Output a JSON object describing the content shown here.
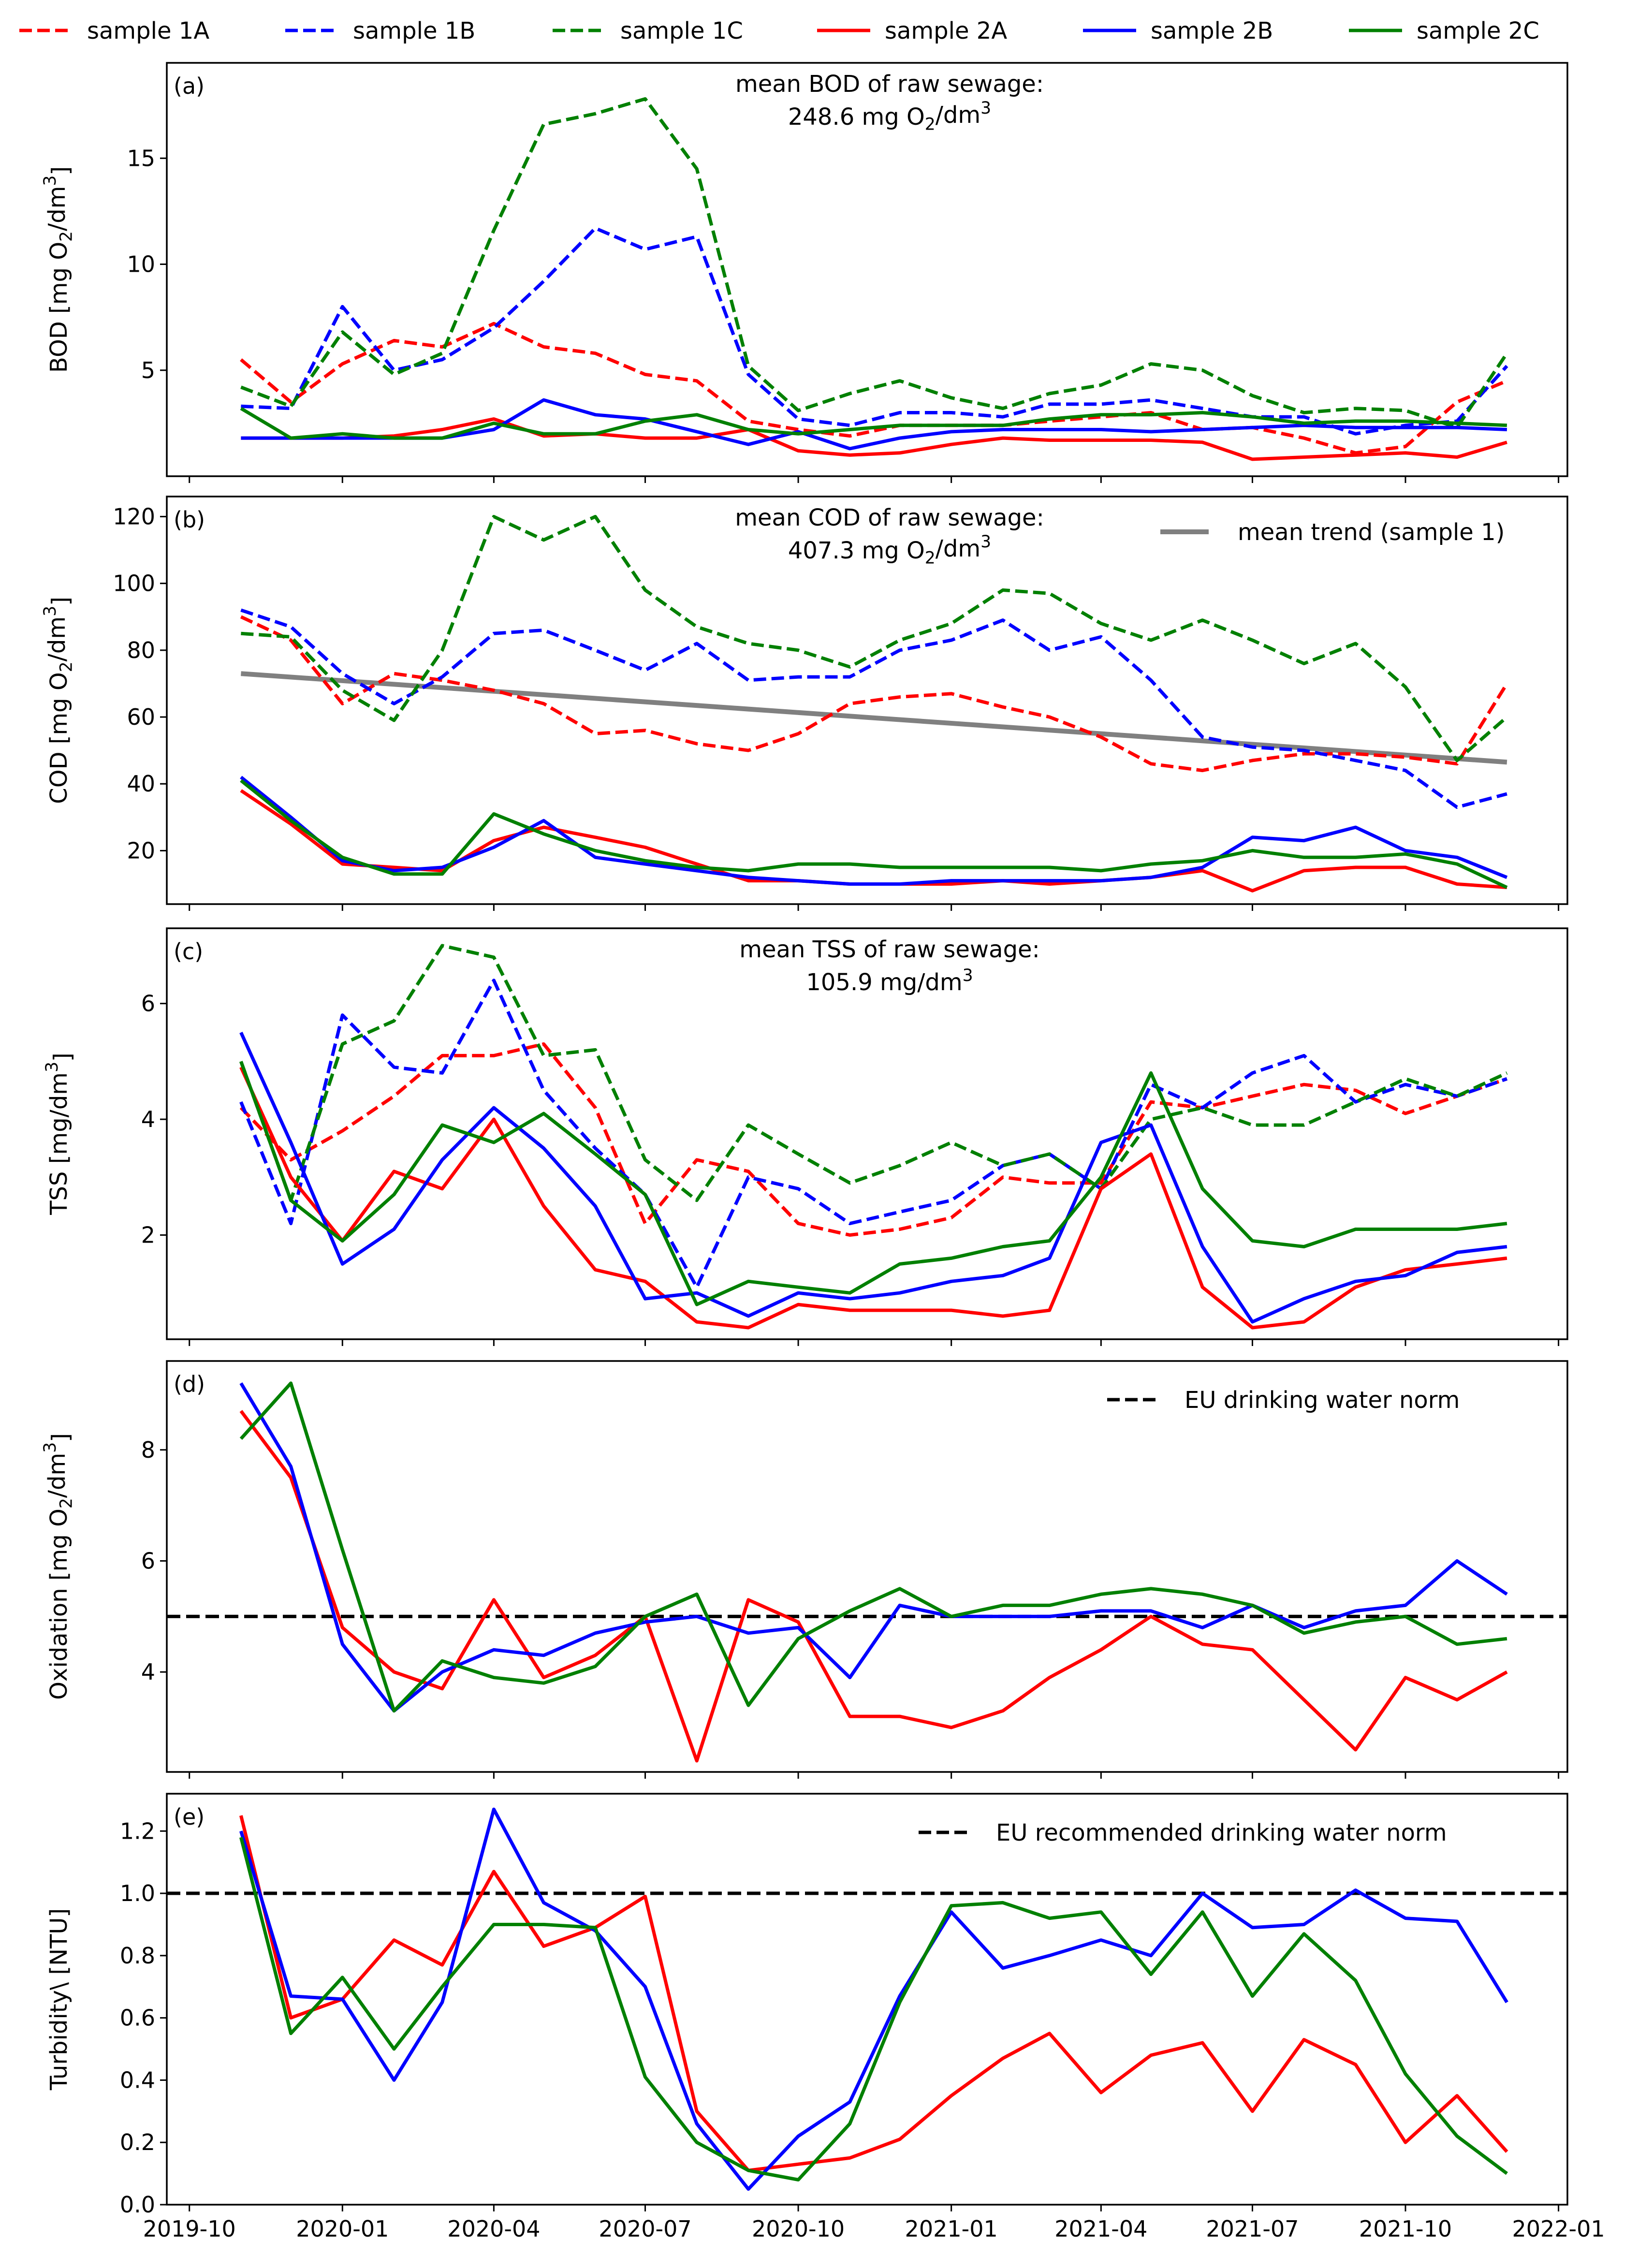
{
  "legend": [
    {
      "name": "sample 1A",
      "color": "#ff0000",
      "dash": true
    },
    {
      "name": "sample 1B",
      "color": "#0000ff",
      "dash": true
    },
    {
      "name": "sample 1C",
      "color": "#008000",
      "dash": true
    },
    {
      "name": "sample 2A",
      "color": "#ff0000",
      "dash": false
    },
    {
      "name": "sample 2B",
      "color": "#0000ff",
      "dash": false
    },
    {
      "name": "sample 2C",
      "color": "#008000",
      "dash": false
    }
  ],
  "x_axis": {
    "start": "2019-10-01",
    "end": "2022-01-01",
    "tick_labels": [
      "2019-10",
      "2020-01",
      "2020-04",
      "2020-07",
      "2020-10",
      "2021-01",
      "2021-04",
      "2021-07",
      "2021-10",
      "2022-01"
    ]
  },
  "chart_data": [
    {
      "type": "line",
      "id": "bod",
      "panel_tag": "(a)",
      "ylabel": "BOD [mg O2/dm3]",
      "ylim": [
        0.0,
        19.5
      ],
      "yticks": [
        5,
        10,
        15
      ],
      "annotation": {
        "line1": "mean BOD of raw sewage:",
        "line2": "248.6 mg O2/dm3"
      },
      "x": [
        "2019-11",
        "2019-12",
        "2020-01",
        "2020-02",
        "2020-03",
        "2020-04",
        "2020-05",
        "2020-06",
        "2020-07",
        "2020-08",
        "2020-09",
        "2020-10",
        "2020-11",
        "2020-12",
        "2021-01",
        "2021-02",
        "2021-03",
        "2021-04",
        "2021-05",
        "2021-06",
        "2021-07",
        "2021-08",
        "2021-09",
        "2021-10",
        "2021-11",
        "2021-12"
      ],
      "series": [
        {
          "name": "sample 1A",
          "values": [
            5.5,
            3.5,
            5.3,
            6.4,
            6.1,
            7.2,
            6.1,
            5.8,
            4.8,
            4.5,
            2.6,
            2.2,
            1.9,
            2.4,
            2.4,
            2.4,
            2.6,
            2.8,
            3.0,
            2.2,
            2.3,
            1.8,
            1.1,
            1.4,
            3.5,
            4.5
          ]
        },
        {
          "name": "sample 1B",
          "values": [
            3.3,
            3.2,
            8.0,
            5.0,
            5.5,
            7.0,
            9.2,
            11.7,
            10.7,
            11.3,
            4.8,
            2.7,
            2.4,
            3.0,
            3.0,
            2.8,
            3.4,
            3.4,
            3.6,
            3.2,
            2.8,
            2.8,
            2.0,
            2.4,
            2.6,
            5.2
          ]
        },
        {
          "name": "sample 1C",
          "values": [
            4.2,
            3.3,
            6.8,
            4.8,
            5.8,
            11.6,
            16.6,
            17.1,
            17.8,
            14.5,
            5.2,
            3.1,
            3.9,
            4.5,
            3.7,
            3.2,
            3.9,
            4.3,
            5.3,
            5.0,
            3.8,
            3.0,
            3.2,
            3.1,
            2.3,
            5.8
          ]
        },
        {
          "name": "sample 2A",
          "values": [
            1.8,
            1.8,
            1.8,
            1.9,
            2.2,
            2.7,
            1.9,
            2.0,
            1.8,
            1.8,
            2.2,
            1.2,
            1.0,
            1.1,
            1.5,
            1.8,
            1.7,
            1.7,
            1.7,
            1.6,
            0.8,
            0.9,
            1.0,
            1.1,
            0.9,
            1.6
          ]
        },
        {
          "name": "sample 2B",
          "values": [
            1.8,
            1.8,
            1.8,
            1.8,
            1.8,
            2.2,
            3.6,
            2.9,
            2.7,
            2.1,
            1.5,
            2.1,
            1.3,
            1.8,
            2.1,
            2.2,
            2.2,
            2.2,
            2.1,
            2.2,
            2.3,
            2.4,
            2.3,
            2.3,
            2.3,
            2.2
          ]
        },
        {
          "name": "sample 2C",
          "values": [
            3.2,
            1.8,
            2.0,
            1.8,
            1.8,
            2.5,
            2.0,
            2.0,
            2.6,
            2.9,
            2.2,
            2.0,
            2.2,
            2.4,
            2.4,
            2.4,
            2.7,
            2.9,
            2.9,
            3.0,
            2.8,
            2.5,
            2.6,
            2.6,
            2.5,
            2.4
          ]
        }
      ]
    },
    {
      "type": "line",
      "id": "cod",
      "panel_tag": "(b)",
      "ylabel": "COD [mg O2/dm3]",
      "ylim": [
        4.0,
        126.0
      ],
      "yticks": [
        20,
        40,
        60,
        80,
        100,
        120
      ],
      "annotation": {
        "line1": "mean COD of raw sewage:",
        "line2": "407.3 mg O2/dm3"
      },
      "legend_extra": {
        "name": "mean trend (sample 1)",
        "color": "#808080"
      },
      "trend": {
        "start": 73.0,
        "end": 46.5
      },
      "x": [
        "2019-11",
        "2019-12",
        "2020-01",
        "2020-02",
        "2020-03",
        "2020-04",
        "2020-05",
        "2020-06",
        "2020-07",
        "2020-08",
        "2020-09",
        "2020-10",
        "2020-11",
        "2020-12",
        "2021-01",
        "2021-02",
        "2021-03",
        "2021-04",
        "2021-05",
        "2021-06",
        "2021-07",
        "2021-08",
        "2021-09",
        "2021-10",
        "2021-11",
        "2021-12"
      ],
      "series": [
        {
          "name": "sample 1A",
          "values": [
            90,
            83,
            64,
            73,
            71,
            68,
            64,
            55,
            56,
            52,
            50,
            55,
            64,
            66,
            67,
            63,
            60,
            54,
            46,
            44,
            47,
            49,
            49,
            48,
            46,
            70
          ]
        },
        {
          "name": "sample 1B",
          "values": [
            92,
            87,
            73,
            64,
            72,
            85,
            86,
            80,
            74,
            82,
            71,
            72,
            72,
            80,
            83,
            89,
            80,
            84,
            71,
            54,
            51,
            50,
            47,
            44,
            33,
            37
          ]
        },
        {
          "name": "sample 1C",
          "values": [
            85,
            84,
            68,
            59,
            80,
            120,
            113,
            120,
            98,
            87,
            82,
            80,
            75,
            83,
            88,
            98,
            97,
            88,
            83,
            89,
            83,
            76,
            82,
            69,
            47,
            60
          ]
        },
        {
          "name": "sample 2A",
          "values": [
            38,
            28,
            16,
            15,
            14,
            23,
            27,
            24,
            21,
            16,
            11,
            11,
            10,
            10,
            10,
            11,
            10,
            11,
            12,
            14,
            8,
            14,
            15,
            15,
            10,
            9
          ]
        },
        {
          "name": "sample 2B",
          "values": [
            42,
            30,
            17,
            14,
            15,
            21,
            29,
            18,
            16,
            14,
            12,
            11,
            10,
            10,
            11,
            11,
            11,
            11,
            12,
            15,
            24,
            23,
            27,
            20,
            18,
            12
          ]
        },
        {
          "name": "sample 2C",
          "values": [
            41,
            29,
            18,
            13,
            13,
            31,
            25,
            20,
            17,
            15,
            14,
            16,
            16,
            15,
            15,
            15,
            15,
            14,
            16,
            17,
            20,
            18,
            18,
            19,
            16,
            9
          ]
        }
      ]
    },
    {
      "type": "line",
      "id": "tss",
      "panel_tag": "(c)",
      "ylabel": "TSS [mg/dm3]",
      "ylim": [
        0.2,
        7.3
      ],
      "yticks": [
        2,
        4,
        6
      ],
      "annotation": {
        "line1": "mean TSS of raw sewage:",
        "line2": "105.9 mg/dm3"
      },
      "x": [
        "2019-11",
        "2019-12",
        "2020-01",
        "2020-02",
        "2020-03",
        "2020-04",
        "2020-05",
        "2020-06",
        "2020-07",
        "2020-08",
        "2020-09",
        "2020-10",
        "2020-11",
        "2020-12",
        "2021-01",
        "2021-02",
        "2021-03",
        "2021-04",
        "2021-05",
        "2021-06",
        "2021-07",
        "2021-08",
        "2021-09",
        "2021-10",
        "2021-11",
        "2021-12"
      ],
      "series": [
        {
          "name": "sample 1A",
          "values": [
            4.2,
            3.3,
            3.8,
            4.4,
            5.1,
            5.1,
            5.3,
            4.2,
            2.2,
            3.3,
            3.1,
            2.2,
            2.0,
            2.1,
            2.3,
            3.0,
            2.9,
            2.9,
            4.3,
            4.2,
            4.4,
            4.6,
            4.5,
            4.1,
            4.4,
            4.7
          ]
        },
        {
          "name": "sample 1B",
          "values": [
            4.3,
            2.2,
            5.8,
            4.9,
            4.8,
            6.4,
            4.5,
            3.5,
            2.7,
            1.1,
            3.0,
            2.8,
            2.2,
            2.4,
            2.6,
            3.2,
            3.4,
            2.8,
            4.6,
            4.2,
            4.8,
            5.1,
            4.3,
            4.6,
            4.4,
            4.7
          ]
        },
        {
          "name": "sample 1C",
          "values": [
            5.0,
            2.6,
            5.3,
            5.7,
            7.0,
            6.8,
            5.1,
            5.2,
            3.3,
            2.6,
            3.9,
            3.4,
            2.9,
            3.2,
            3.6,
            3.2,
            3.4,
            2.8,
            4.0,
            4.2,
            3.9,
            3.9,
            4.3,
            4.7,
            4.4,
            4.8
          ]
        },
        {
          "name": "sample 2A",
          "values": [
            4.9,
            3.0,
            1.9,
            3.1,
            2.8,
            4.0,
            2.5,
            1.4,
            1.2,
            0.5,
            0.4,
            0.8,
            0.7,
            0.7,
            0.7,
            0.6,
            0.7,
            2.8,
            3.4,
            1.1,
            0.4,
            0.5,
            1.1,
            1.4,
            1.5,
            1.6
          ]
        },
        {
          "name": "sample 2B",
          "values": [
            5.5,
            3.6,
            1.5,
            2.1,
            3.3,
            4.2,
            3.5,
            2.5,
            0.9,
            1.0,
            0.6,
            1.0,
            0.9,
            1.0,
            1.2,
            1.3,
            1.6,
            3.6,
            3.9,
            1.8,
            0.5,
            0.9,
            1.2,
            1.3,
            1.7,
            1.8
          ]
        },
        {
          "name": "sample 2C",
          "values": [
            5.0,
            2.6,
            1.9,
            2.7,
            3.9,
            3.6,
            4.1,
            3.4,
            2.7,
            0.8,
            1.2,
            1.1,
            1.0,
            1.5,
            1.6,
            1.8,
            1.9,
            3.0,
            4.8,
            2.8,
            1.9,
            1.8,
            2.1,
            2.1,
            2.1,
            2.2
          ]
        }
      ]
    },
    {
      "type": "line",
      "id": "oxidation",
      "panel_tag": "(d)",
      "ylabel": "Oxidation [mg O2/dm3]",
      "ylim": [
        2.2,
        9.6
      ],
      "yticks": [
        4,
        6,
        8
      ],
      "norm": {
        "label": "EU drinking water norm",
        "value": 5.0
      },
      "x": [
        "2019-11",
        "2019-12",
        "2020-01",
        "2020-02",
        "2020-03",
        "2020-04",
        "2020-05",
        "2020-06",
        "2020-07",
        "2020-08",
        "2020-09",
        "2020-10",
        "2020-11",
        "2020-12",
        "2021-01",
        "2021-02",
        "2021-03",
        "2021-04",
        "2021-05",
        "2021-06",
        "2021-07",
        "2021-08",
        "2021-09",
        "2021-10",
        "2021-11",
        "2021-12"
      ],
      "series": [
        {
          "name": "sample 2A",
          "values": [
            8.7,
            7.5,
            4.8,
            4.0,
            3.7,
            5.3,
            3.9,
            4.3,
            5.0,
            2.4,
            5.3,
            4.9,
            3.2,
            3.2,
            3.0,
            3.3,
            3.9,
            4.4,
            5.0,
            4.5,
            4.4,
            3.5,
            2.6,
            3.9,
            3.5,
            4.0
          ]
        },
        {
          "name": "sample 2B",
          "values": [
            9.2,
            7.7,
            4.5,
            3.3,
            4.0,
            4.4,
            4.3,
            4.7,
            4.9,
            5.0,
            4.7,
            4.8,
            3.9,
            5.2,
            5.0,
            5.0,
            5.0,
            5.1,
            5.1,
            4.8,
            5.2,
            4.8,
            5.1,
            5.2,
            6.0,
            5.4
          ]
        },
        {
          "name": "sample 2C",
          "values": [
            8.2,
            9.2,
            6.2,
            3.3,
            4.2,
            3.9,
            3.8,
            4.1,
            5.0,
            5.4,
            3.4,
            4.6,
            5.1,
            5.5,
            5.0,
            5.2,
            5.2,
            5.4,
            5.5,
            5.4,
            5.2,
            4.7,
            4.9,
            5.0,
            4.5,
            4.6
          ]
        }
      ]
    },
    {
      "type": "line",
      "id": "turbidity",
      "panel_tag": "(e)",
      "ylabel": "Turbidity\\ [NTU]",
      "ylim": [
        0.0,
        1.32
      ],
      "yticks": [
        0.0,
        0.2,
        0.4,
        0.6,
        0.8,
        1.0,
        1.2
      ],
      "ytick_labels": [
        "0.0",
        "0.2",
        "0.4",
        "0.6",
        "0.8",
        "1.0",
        "1.2"
      ],
      "norm": {
        "label": "EU recommended drinking water norm",
        "value": 1.0
      },
      "x": [
        "2019-11",
        "2019-12",
        "2020-01",
        "2020-02",
        "2020-03",
        "2020-04",
        "2020-05",
        "2020-06",
        "2020-07",
        "2020-08",
        "2020-09",
        "2020-10",
        "2020-11",
        "2020-12",
        "2021-01",
        "2021-02",
        "2021-03",
        "2021-04",
        "2021-05",
        "2021-06",
        "2021-07",
        "2021-08",
        "2021-09",
        "2021-10",
        "2021-11",
        "2021-12"
      ],
      "series": [
        {
          "name": "sample 2A",
          "values": [
            1.25,
            0.6,
            0.66,
            0.85,
            0.77,
            1.07,
            0.83,
            0.89,
            0.99,
            0.3,
            0.11,
            0.13,
            0.15,
            0.21,
            0.35,
            0.47,
            0.55,
            0.36,
            0.48,
            0.52,
            0.3,
            0.53,
            0.45,
            0.2,
            0.35,
            0.17
          ]
        },
        {
          "name": "sample 2B",
          "values": [
            1.2,
            0.67,
            0.66,
            0.4,
            0.65,
            1.27,
            0.97,
            0.88,
            0.7,
            0.26,
            0.05,
            0.22,
            0.33,
            0.67,
            0.94,
            0.76,
            0.8,
            0.85,
            0.8,
            1.0,
            0.89,
            0.9,
            1.01,
            0.92,
            0.91,
            0.65
          ]
        },
        {
          "name": "sample 2C",
          "values": [
            1.18,
            0.55,
            0.73,
            0.5,
            0.7,
            0.9,
            0.9,
            0.89,
            0.41,
            0.2,
            0.11,
            0.08,
            0.26,
            0.65,
            0.96,
            0.97,
            0.92,
            0.94,
            0.74,
            0.94,
            0.67,
            0.87,
            0.72,
            0.42,
            0.22,
            0.1
          ]
        }
      ]
    }
  ]
}
